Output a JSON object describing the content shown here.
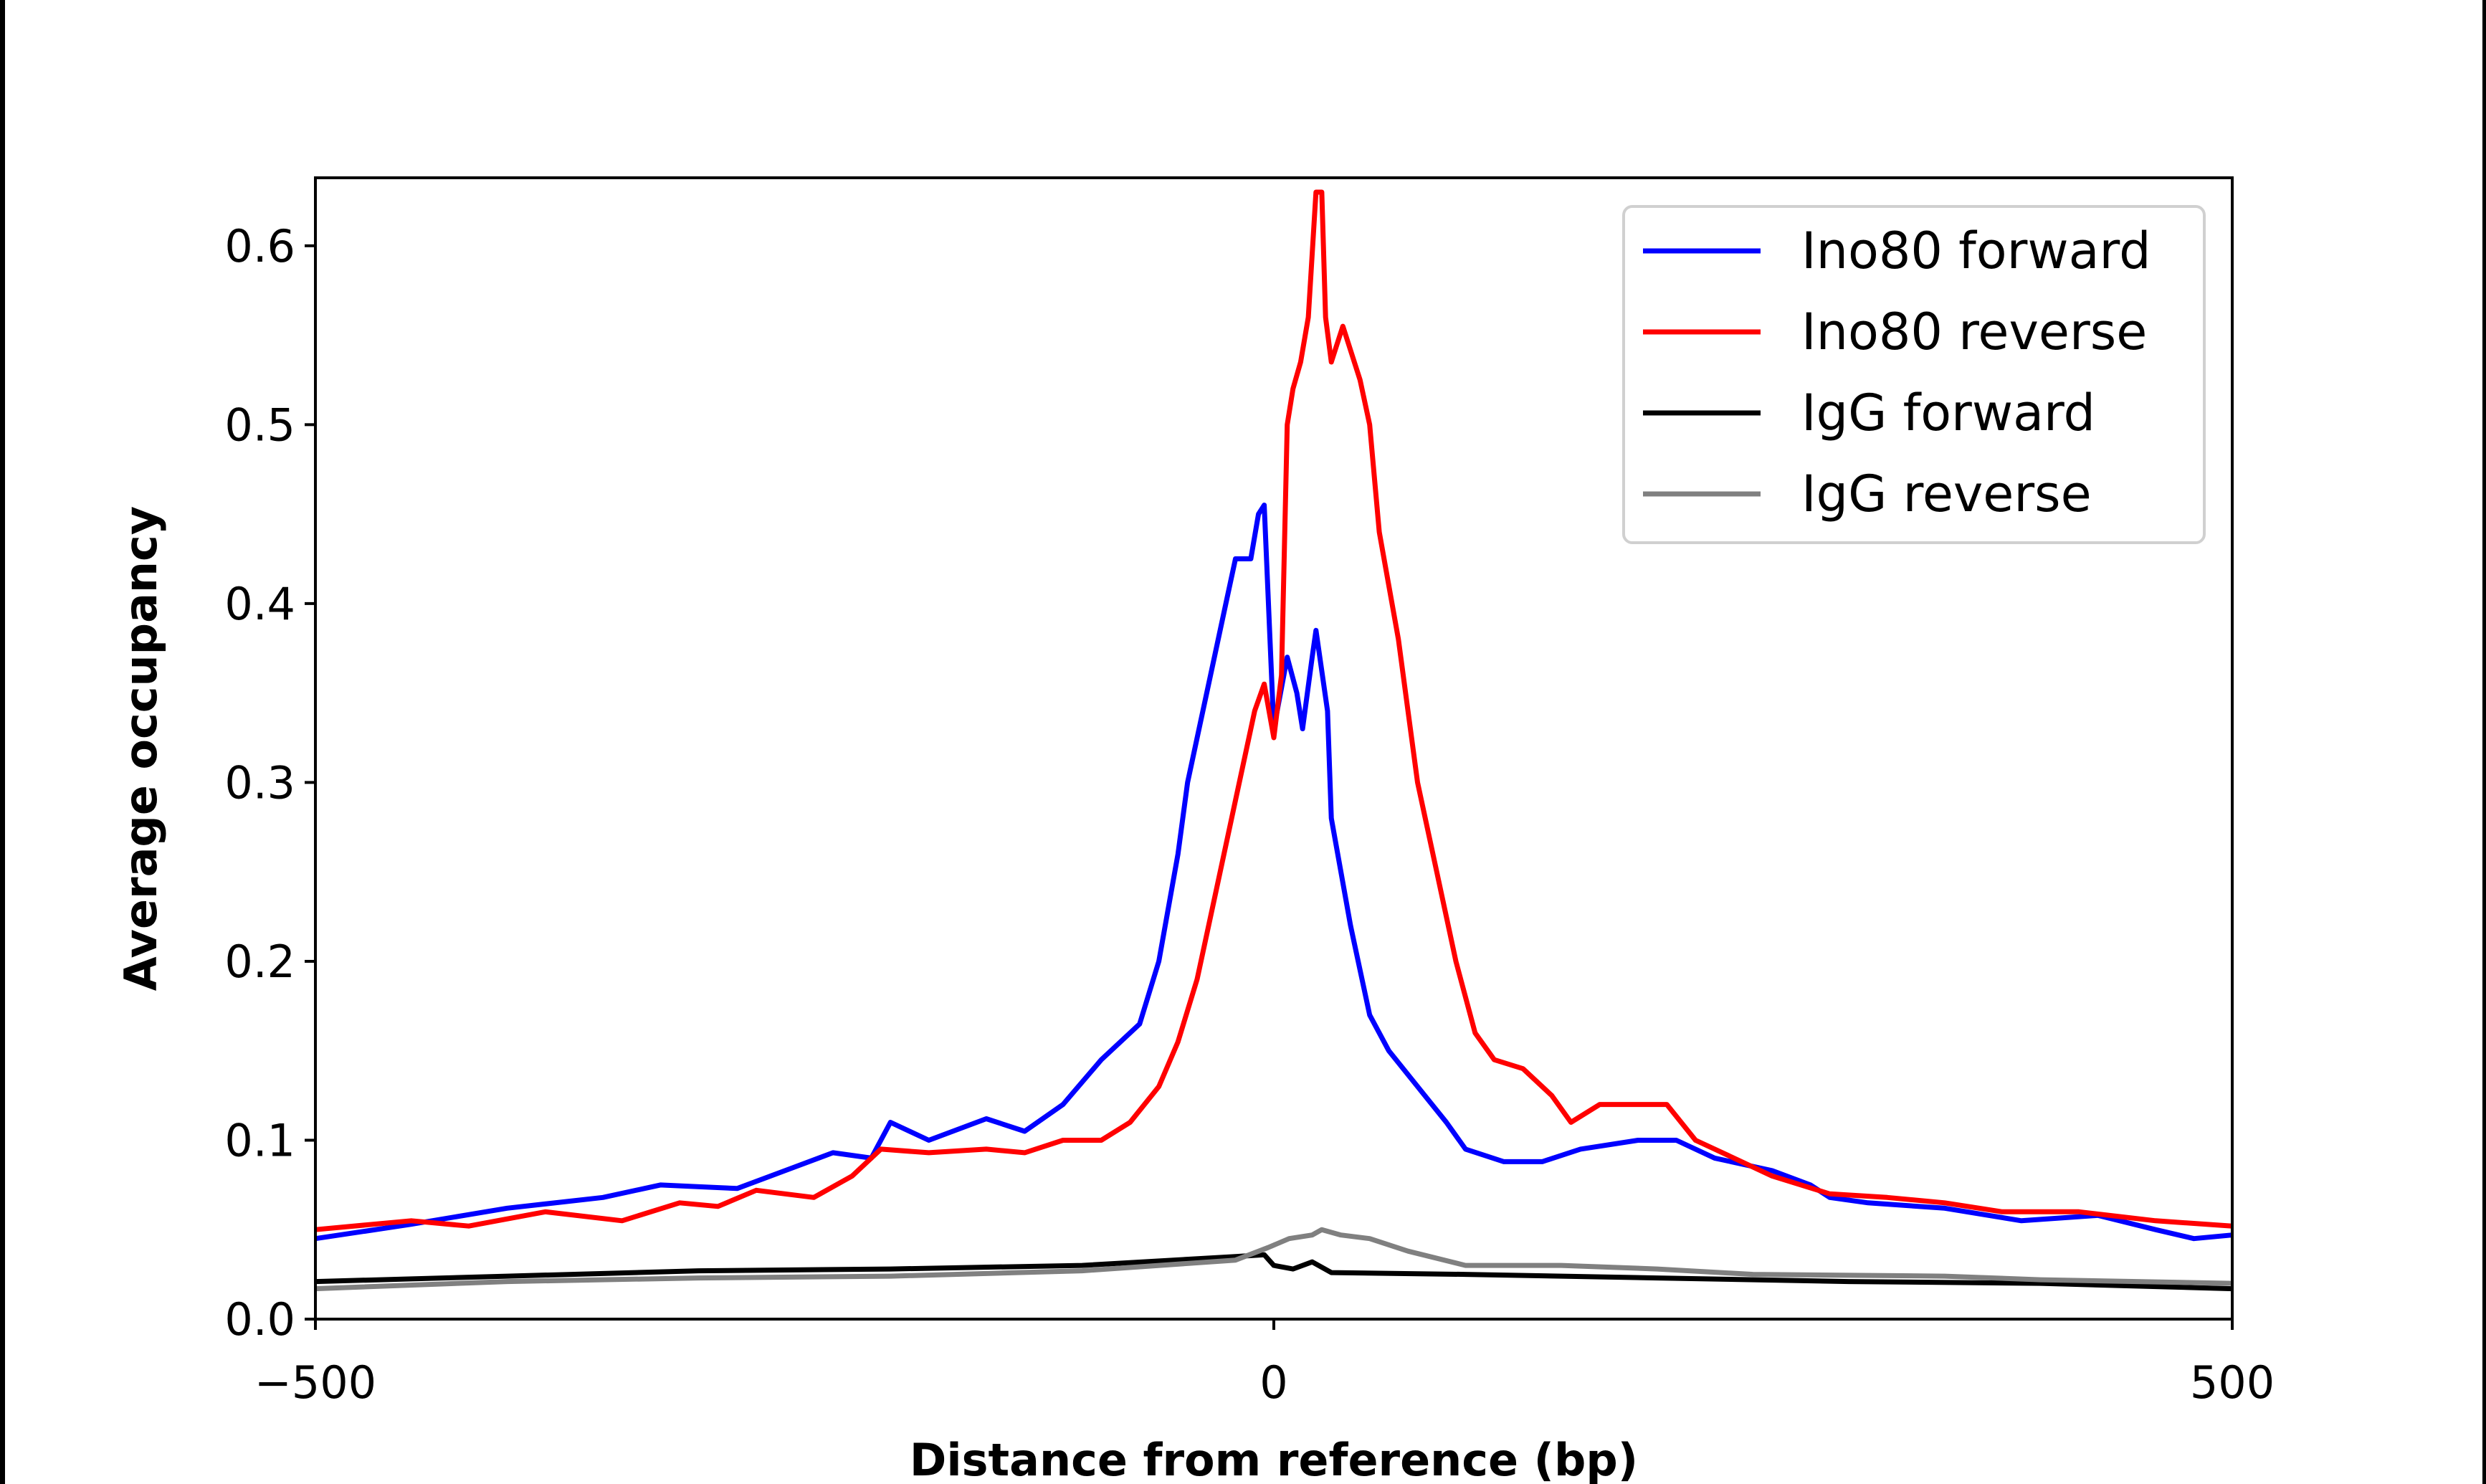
{
  "chart_data": {
    "type": "line",
    "title": "",
    "xlabel": "Distance from reference (bp)",
    "ylabel": "Average occupancy",
    "xlim": [
      -500,
      500
    ],
    "ylim": [
      0,
      0.638
    ],
    "xticks": [
      -500,
      0,
      500
    ],
    "xtick_labels": [
      "−500",
      "0",
      "500"
    ],
    "yticks": [
      0.0,
      0.1,
      0.2,
      0.3,
      0.4,
      0.5,
      0.6
    ],
    "ytick_labels": [
      "0.0",
      "0.1",
      "0.2",
      "0.3",
      "0.4",
      "0.5",
      "0.6"
    ],
    "grid": false,
    "legend_position": "top-right",
    "series": [
      {
        "name": "Ino80 forward",
        "color": "#0000ff",
        "x": [
          -500,
          -450,
          -400,
          -350,
          -320,
          -280,
          -250,
          -230,
          -210,
          -200,
          -180,
          -150,
          -130,
          -110,
          -90,
          -70,
          -60,
          -50,
          -45,
          -35,
          -25,
          -20,
          -12,
          -8,
          -5,
          0,
          7,
          12,
          15,
          20,
          22,
          28,
          30,
          40,
          50,
          60,
          75,
          90,
          100,
          120,
          140,
          160,
          190,
          210,
          230,
          260,
          280,
          290,
          310,
          350,
          390,
          430,
          460,
          480,
          500
        ],
        "y": [
          0.045,
          0.053,
          0.062,
          0.068,
          0.075,
          0.073,
          0.085,
          0.093,
          0.09,
          0.11,
          0.1,
          0.112,
          0.105,
          0.12,
          0.145,
          0.165,
          0.2,
          0.26,
          0.3,
          0.35,
          0.4,
          0.425,
          0.425,
          0.45,
          0.455,
          0.33,
          0.37,
          0.35,
          0.33,
          0.37,
          0.385,
          0.34,
          0.28,
          0.22,
          0.17,
          0.15,
          0.13,
          0.11,
          0.095,
          0.088,
          0.088,
          0.095,
          0.1,
          0.1,
          0.09,
          0.083,
          0.075,
          0.068,
          0.065,
          0.062,
          0.055,
          0.058,
          0.05,
          0.045,
          0.047
        ]
      },
      {
        "name": "Ino80 reverse",
        "color": "#ff0000",
        "x": [
          -500,
          -450,
          -420,
          -380,
          -340,
          -310,
          -290,
          -270,
          -240,
          -220,
          -205,
          -180,
          -150,
          -130,
          -110,
          -90,
          -75,
          -60,
          -50,
          -40,
          -30,
          -20,
          -10,
          -5,
          0,
          4,
          7,
          10,
          14,
          18,
          22,
          25,
          27,
          30,
          33,
          36,
          45,
          50,
          55,
          65,
          75,
          85,
          95,
          105,
          115,
          130,
          145,
          155,
          170,
          190,
          205,
          220,
          240,
          260,
          290,
          320,
          350,
          380,
          420,
          460,
          500
        ],
        "y": [
          0.05,
          0.055,
          0.052,
          0.06,
          0.055,
          0.065,
          0.063,
          0.072,
          0.068,
          0.08,
          0.095,
          0.093,
          0.095,
          0.093,
          0.1,
          0.1,
          0.11,
          0.13,
          0.155,
          0.19,
          0.24,
          0.29,
          0.34,
          0.355,
          0.325,
          0.36,
          0.5,
          0.52,
          0.535,
          0.56,
          0.63,
          0.63,
          0.56,
          0.535,
          0.545,
          0.555,
          0.525,
          0.5,
          0.44,
          0.38,
          0.3,
          0.25,
          0.2,
          0.16,
          0.145,
          0.14,
          0.125,
          0.11,
          0.12,
          0.12,
          0.12,
          0.1,
          0.09,
          0.08,
          0.07,
          0.068,
          0.065,
          0.06,
          0.06,
          0.055,
          0.052
        ]
      },
      {
        "name": "IgG forward",
        "color": "#000000",
        "x": [
          -500,
          -400,
          -300,
          -200,
          -100,
          -20,
          -5,
          0,
          10,
          20,
          30,
          100,
          200,
          300,
          400,
          500
        ],
        "y": [
          0.021,
          0.024,
          0.027,
          0.028,
          0.03,
          0.035,
          0.036,
          0.03,
          0.028,
          0.032,
          0.026,
          0.025,
          0.023,
          0.021,
          0.02,
          0.017
        ]
      },
      {
        "name": "IgG reverse",
        "color": "#808080",
        "x": [
          -500,
          -400,
          -300,
          -200,
          -100,
          -20,
          -3,
          8,
          20,
          25,
          35,
          50,
          70,
          100,
          150,
          200,
          250,
          350,
          400,
          500
        ],
        "y": [
          0.017,
          0.021,
          0.023,
          0.024,
          0.027,
          0.033,
          0.04,
          0.045,
          0.047,
          0.05,
          0.047,
          0.045,
          0.038,
          0.03,
          0.03,
          0.028,
          0.025,
          0.024,
          0.022,
          0.02
        ]
      }
    ]
  }
}
